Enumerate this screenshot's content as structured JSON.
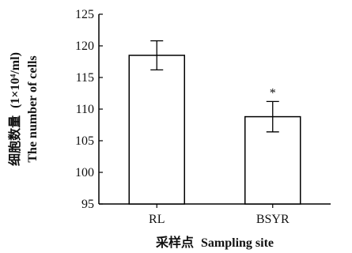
{
  "chart_data": {
    "type": "bar",
    "categories": [
      "RL",
      "BSYR"
    ],
    "values": [
      118.5,
      108.8
    ],
    "error": [
      2.3,
      2.4
    ],
    "annotations": [
      "",
      "*"
    ],
    "ylim": [
      95,
      125
    ],
    "yticks": [
      95,
      100,
      105,
      110,
      115,
      120,
      125
    ],
    "ytick_labels": [
      "95",
      "100",
      "105",
      "110",
      "115",
      "120",
      "125"
    ],
    "xlabel_cn": "采样点",
    "xlabel_en": "Sampling site",
    "ylabel_cn": "细胞数量",
    "ylabel_unit": "(1×10⁴/ml)",
    "ylabel_en": "The number of cells",
    "grid": false,
    "bar_fill": "#ffffff",
    "stroke_color": "#000000"
  }
}
